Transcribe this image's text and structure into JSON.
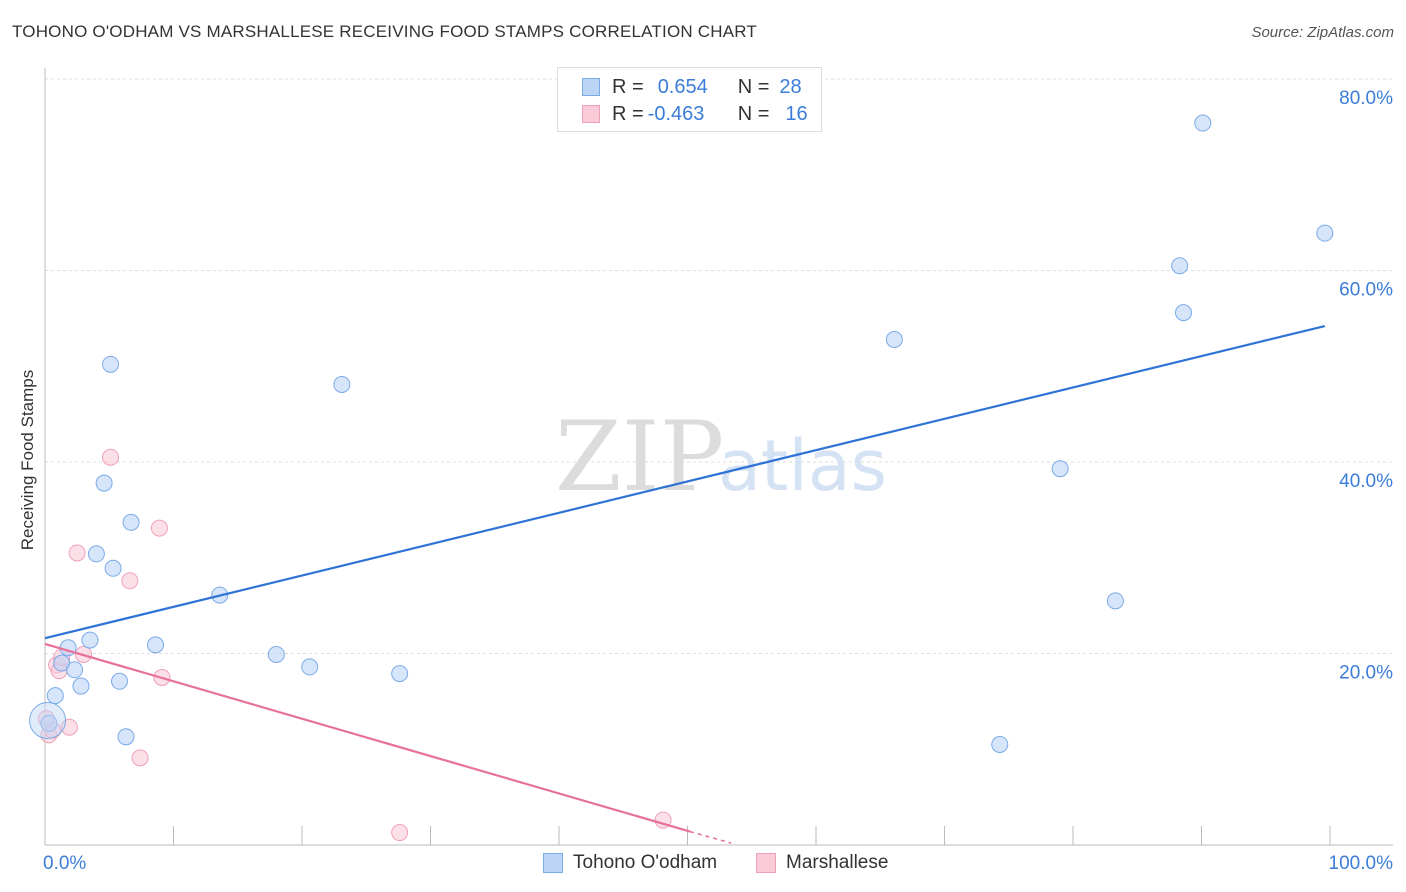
{
  "title": "TOHONO O'ODHAM VS MARSHALLESE RECEIVING FOOD STAMPS CORRELATION CHART",
  "source": "Source: ZipAtlas.com",
  "watermark": {
    "zip": "ZIP",
    "atlas": "atlas"
  },
  "legend": {
    "rows": [
      {
        "r_label": "R =",
        "r_value": "0.654",
        "n_label": "N =",
        "n_value": "28",
        "color": "#7aaae8",
        "fill": "#bcd4f6"
      },
      {
        "r_label": "R =",
        "r_value": "-0.463",
        "n_label": "N =",
        "n_value": "16",
        "color": "#f0a0b8",
        "fill": "#f9cbd9"
      }
    ]
  },
  "colors": {
    "blue_line": "#2f73d6",
    "pink_line": "#e8719a",
    "grid": "#dddddd",
    "axis_label": "#3b7dd8"
  },
  "chart_data": {
    "type": "scatter",
    "xlabel": "",
    "ylabel": "Receiving Food Stamps",
    "xlim": [
      0,
      100
    ],
    "ylim": [
      0,
      80
    ],
    "x_tick_labels": [
      "0.0%",
      "100.0%"
    ],
    "y_tick_labels": [
      "20.0%",
      "40.0%",
      "60.0%",
      "80.0%"
    ],
    "y_ticks": [
      20,
      40,
      60,
      80
    ],
    "series": [
      {
        "name": "Tohono O'odham",
        "color": "#7aaae8",
        "fill": "#bcd4f6",
        "points": [
          [
            0.3,
            12.7
          ],
          [
            0.8,
            15.6
          ],
          [
            1.3,
            19.0
          ],
          [
            1.8,
            20.6
          ],
          [
            2.3,
            18.3
          ],
          [
            2.8,
            16.6
          ],
          [
            3.5,
            21.4
          ],
          [
            4.0,
            30.4
          ],
          [
            4.6,
            37.8
          ],
          [
            5.1,
            50.2
          ],
          [
            5.3,
            28.9
          ],
          [
            5.8,
            17.1
          ],
          [
            6.3,
            11.3
          ],
          [
            6.7,
            33.7
          ],
          [
            8.6,
            20.9
          ],
          [
            13.6,
            26.1
          ],
          [
            18.0,
            19.9
          ],
          [
            20.6,
            18.6
          ],
          [
            23.1,
            48.1
          ],
          [
            27.6,
            17.9
          ],
          [
            66.1,
            52.8
          ],
          [
            74.3,
            10.5
          ],
          [
            79.0,
            39.3
          ],
          [
            83.3,
            25.5
          ],
          [
            88.3,
            60.5
          ],
          [
            88.6,
            55.6
          ],
          [
            90.1,
            75.4
          ],
          [
            99.6,
            63.9
          ]
        ],
        "trend": {
          "x1": 0,
          "y1": 21.6,
          "x2": 99.6,
          "y2": 54.2
        }
      },
      {
        "name": "Marshallese",
        "color": "#f0a0b8",
        "fill": "#f9cbd9",
        "points": [
          [
            0.3,
            11.5
          ],
          [
            0.6,
            12.0
          ],
          [
            0.9,
            18.8
          ],
          [
            1.1,
            18.2
          ],
          [
            1.3,
            19.6
          ],
          [
            1.9,
            12.3
          ],
          [
            2.5,
            30.5
          ],
          [
            3.0,
            19.9
          ],
          [
            5.1,
            40.5
          ],
          [
            6.6,
            27.6
          ],
          [
            7.4,
            9.1
          ],
          [
            8.9,
            33.1
          ],
          [
            9.1,
            17.5
          ],
          [
            27.6,
            1.3
          ],
          [
            48.1,
            2.6
          ],
          [
            0.1,
            13.2
          ]
        ],
        "trend": {
          "x1": 0,
          "y1": 21.0,
          "x2": 50.2,
          "y2": 1.4,
          "dash_to_x": 53.4,
          "dash_to_y": 0.2
        }
      }
    ]
  }
}
